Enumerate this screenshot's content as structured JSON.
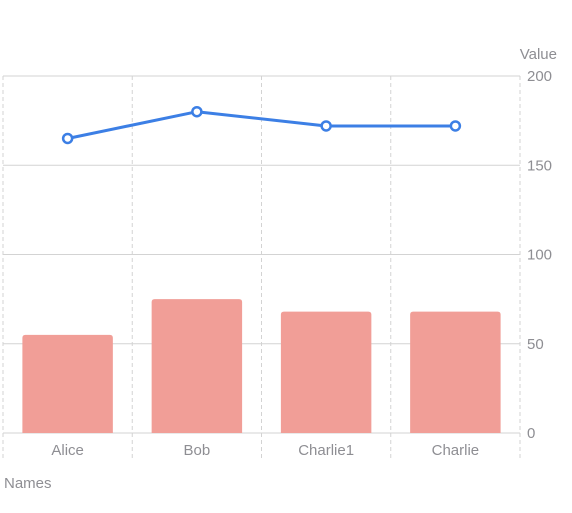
{
  "chart_data": {
    "type": "bar",
    "categories": [
      "Alice",
      "Bob",
      "Charlie1",
      "Charlie"
    ],
    "series": [
      {
        "kind": "bar",
        "values": [
          55,
          75,
          68,
          68
        ],
        "color": "#F19E97"
      },
      {
        "kind": "line",
        "values": [
          165,
          180,
          172,
          172
        ],
        "color": "#3C7FE5"
      }
    ],
    "xlabel": "Names",
    "ylabel": "Value",
    "ylim": [
      0,
      200
    ],
    "yticks": [
      0,
      50,
      100,
      150,
      200
    ],
    "y_axis_side": "right",
    "grid": true
  },
  "colors": {
    "grid": "#D3D3D3",
    "tick_label": "#8E8E93"
  }
}
